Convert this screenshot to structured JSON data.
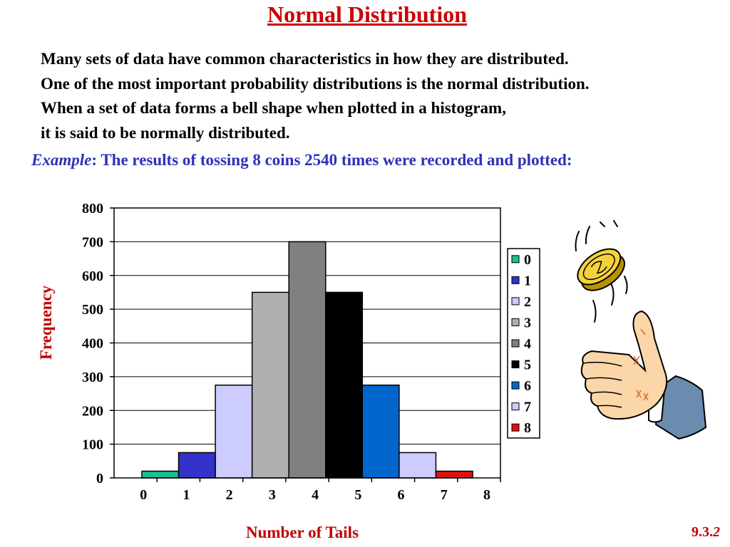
{
  "slide": {
    "title": "Normal Distribution",
    "intro_lines": [
      "Many sets of data have common characteristics in how they are distributed.",
      "One of the most important probability distributions is the normal distribution.",
      "When a set of data forms a bell shape when plotted in a histogram,",
      "it is said to be normally distributed."
    ],
    "example_label": "Example",
    "example_text": ": The results of tossing 8 coins 2540 times were recorded and plotted:",
    "slide_number_prefix": "9.3.",
    "slide_number_suffix": "2",
    "illustration": "hand-flipping-coin-icon"
  },
  "chart_data": {
    "type": "bar",
    "categories": [
      "0",
      "1",
      "2",
      "3",
      "4",
      "5",
      "6",
      "7",
      "8"
    ],
    "values": [
      20,
      75,
      275,
      550,
      700,
      550,
      275,
      75,
      20
    ],
    "colors": [
      "#1bbf95",
      "#3333cc",
      "#ccccff",
      "#b0b0b0",
      "#808080",
      "#000000",
      "#0066cc",
      "#ccccff",
      "#e01010"
    ],
    "x_tick_labels": [
      "0",
      "1",
      "2",
      "3",
      "4",
      "5",
      "6",
      "7",
      "8"
    ],
    "y_ticks": [
      0,
      100,
      200,
      300,
      400,
      500,
      600,
      700,
      800
    ],
    "ylim": [
      0,
      800
    ],
    "xlabel": "Number of Tails",
    "ylabel": "Frequency",
    "grid": true,
    "legend": "right",
    "legend_entries": [
      "0",
      "1",
      "2",
      "3",
      "4",
      "5",
      "6",
      "7",
      "8"
    ]
  }
}
